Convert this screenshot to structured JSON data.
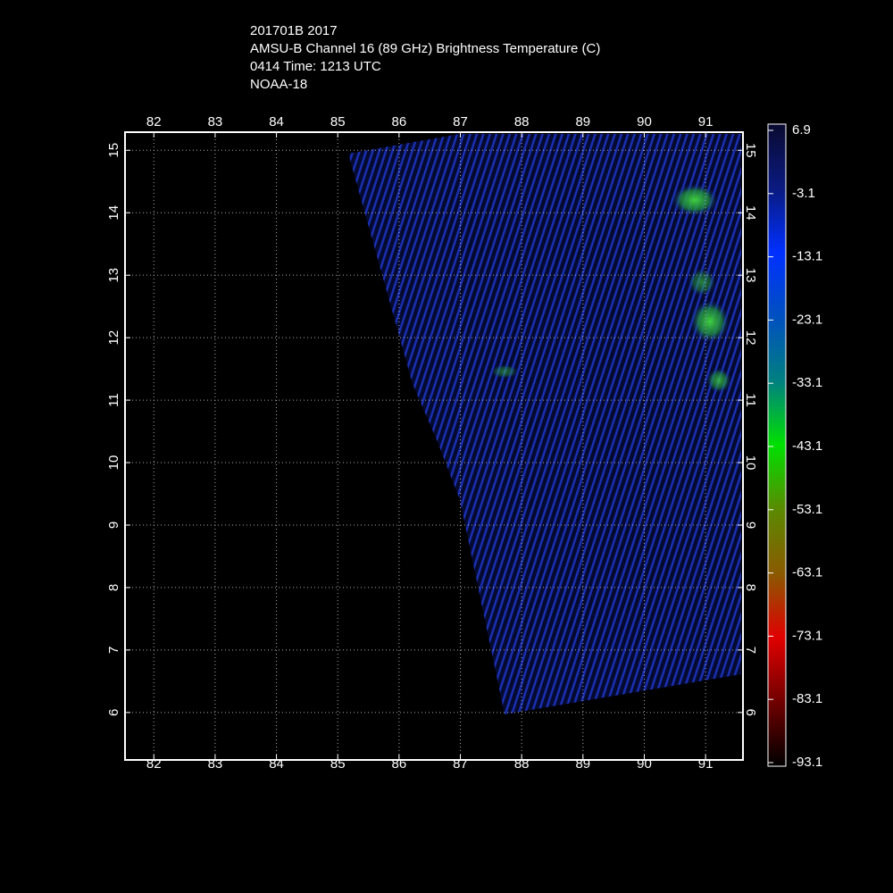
{
  "header": {
    "lines": [
      "201701B 2017",
      "AMSU-B Channel 16 (89 GHz) Brightness Temperature (C)",
      "0414 Time: 1213 UTC",
      "NOAA-18"
    ]
  },
  "map": {
    "xlim": [
      81.53,
      91.61
    ],
    "ylim": [
      5.24,
      15.29
    ],
    "xticks": [
      82,
      83,
      84,
      85,
      86,
      87,
      88,
      89,
      90,
      91
    ],
    "yticks": [
      6,
      7,
      8,
      9,
      10,
      11,
      12,
      13,
      14,
      15
    ],
    "grid": true
  },
  "colorbar": {
    "ticks": [
      6.9,
      -3.1,
      -13.1,
      -23.1,
      -33.1,
      -43.1,
      -53.1,
      -63.1,
      -73.1,
      -83.1,
      -93.1
    ],
    "colors": [
      "#0a0a30",
      "#0a1a80",
      "#0030ff",
      "#0050c0",
      "#008080",
      "#00e000",
      "#5a8a00",
      "#8a5a00",
      "#e00000",
      "#700000",
      "#000000"
    ]
  }
}
